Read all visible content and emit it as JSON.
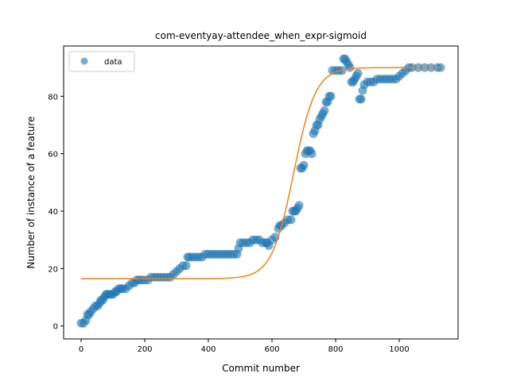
{
  "chart_data": {
    "type": "scatter",
    "title": "com-eventyay-attendee_when_expr-sigmoid",
    "xlabel": "Commit number",
    "ylabel": "Number of instance of a feature",
    "xlim": [
      -55,
      1185
    ],
    "ylim": [
      -4.5,
      97.5
    ],
    "xticks": [
      0,
      200,
      400,
      600,
      800,
      1000
    ],
    "yticks": [
      0,
      20,
      40,
      60,
      80
    ],
    "grid": false,
    "legend": {
      "placement": "top-left",
      "entries": [
        "data"
      ]
    },
    "colors": {
      "data": "#1f77b4",
      "fit": "#ff7f0e"
    },
    "series": [
      {
        "name": "data",
        "kind": "scatter",
        "x": [
          0,
          8,
          15,
          20,
          25,
          30,
          38,
          45,
          52,
          58,
          62,
          68,
          72,
          78,
          82,
          88,
          95,
          100,
          108,
          112,
          118,
          125,
          130,
          140,
          150,
          160,
          168,
          175,
          182,
          190,
          200,
          210,
          220,
          230,
          240,
          250,
          260,
          270,
          280,
          290,
          300,
          310,
          320,
          330,
          335,
          340,
          350,
          360,
          370,
          380,
          390,
          400,
          410,
          420,
          430,
          440,
          450,
          460,
          470,
          480,
          490,
          495,
          500,
          510,
          520,
          530,
          540,
          550,
          560,
          570,
          580,
          585,
          590,
          600,
          610,
          620,
          625,
          630,
          640,
          650,
          660,
          665,
          670,
          675,
          680,
          685,
          690,
          695,
          700,
          705,
          710,
          715,
          720,
          725,
          730,
          735,
          740,
          745,
          750,
          755,
          760,
          765,
          770,
          775,
          780,
          785,
          790,
          800,
          810,
          820,
          825,
          830,
          835,
          840,
          845,
          850,
          855,
          860,
          865,
          870,
          875,
          880,
          885,
          890,
          900,
          910,
          920,
          930,
          940,
          950,
          960,
          970,
          980,
          990,
          1000,
          1010,
          1020,
          1030,
          1040,
          1060,
          1080,
          1100,
          1120,
          1130
        ],
        "y": [
          1,
          1,
          2,
          4,
          4,
          5,
          6,
          7,
          7,
          8,
          9,
          9,
          10,
          11,
          11,
          11,
          11,
          11,
          12,
          12,
          13,
          13,
          13,
          13,
          14,
          15,
          15,
          16,
          16,
          16,
          16,
          16,
          17,
          17,
          17,
          17,
          17,
          17,
          17,
          18,
          19,
          20,
          21,
          21,
          24,
          24,
          24,
          24,
          24,
          24,
          25,
          25,
          25,
          25,
          25,
          25,
          25,
          25,
          25,
          25,
          25,
          27,
          29,
          29,
          29,
          29,
          30,
          30,
          30,
          29,
          29,
          29,
          28,
          30,
          31,
          34,
          35,
          35,
          36,
          37,
          37,
          40,
          40,
          40,
          41,
          42,
          55,
          55,
          56,
          60,
          61,
          61,
          61,
          60,
          67,
          68,
          70,
          70,
          72,
          73,
          74,
          75,
          78,
          78,
          80,
          80,
          89,
          89,
          89,
          89,
          93,
          93,
          92,
          91,
          90,
          85,
          85,
          86,
          87,
          88,
          79,
          79,
          82,
          84,
          85,
          85,
          85,
          86,
          86,
          86,
          86,
          86,
          86,
          86,
          87,
          88,
          89,
          90,
          90,
          90,
          90,
          90,
          90,
          90
        ]
      },
      {
        "name": "",
        "kind": "line",
        "model": "sigmoid",
        "params": {
          "lower": 16.5,
          "upper": 90,
          "x0": 668,
          "k": 0.029
        },
        "x_range": [
          0,
          1130
        ]
      }
    ]
  }
}
